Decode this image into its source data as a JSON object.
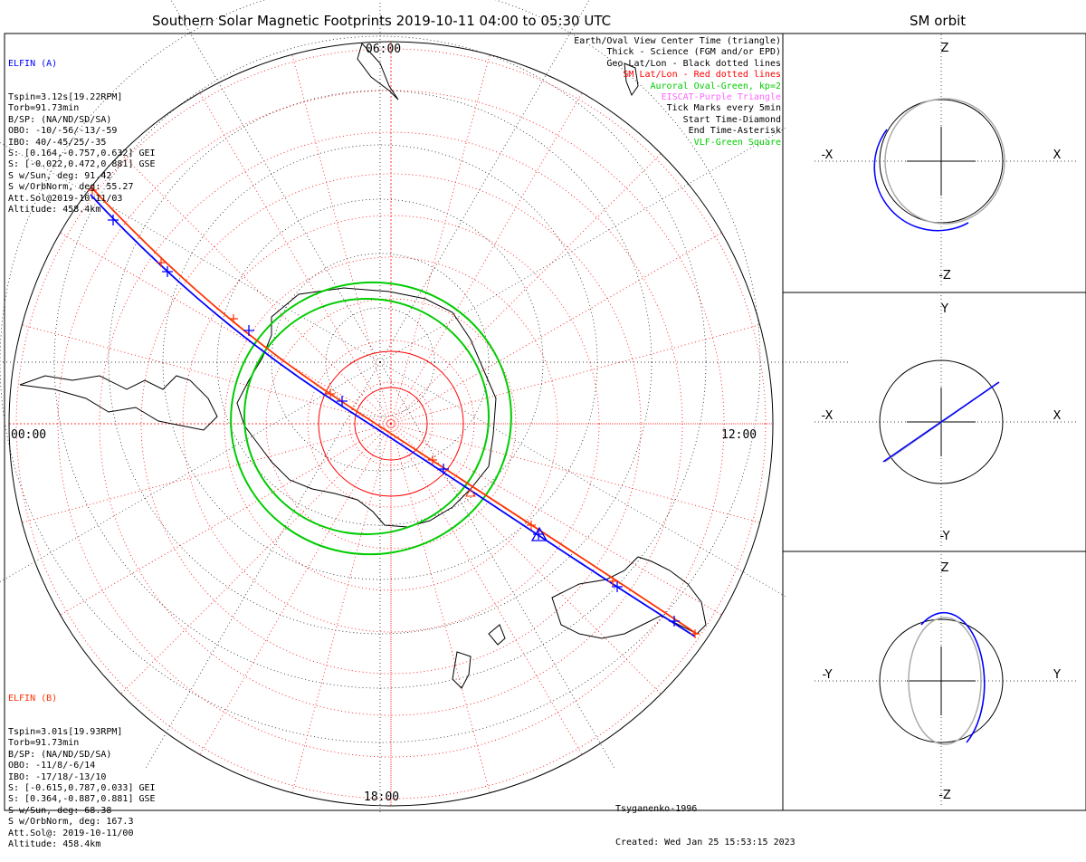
{
  "main_title": "Southern Solar Magnetic Footprints 2019-10-11 04:00 to 05:30 UTC",
  "orbit_title": "SM orbit",
  "colors": {
    "elfin_a": "#0000ff",
    "elfin_b": "#ff3300",
    "oval": "#00cc00",
    "sm_grid": "#ff0000",
    "orbit_grey": "#aaaaaa",
    "eiscat": "#ff66ff",
    "vlf": "#00cc00"
  },
  "time_labels": {
    "top": "06:00",
    "left": "00:00",
    "right": "12:00",
    "bottom": "18:00"
  },
  "elfin_a": {
    "name": "ELFIN (A)",
    "lines": [
      "Tspin=3.12s[19.22RPM]",
      "Torb=91.73min",
      "B/SP: (NA/ND/SD/SA)",
      "OBO: -10/-56/-13/-59",
      "IBO: 40/-45/25/-35",
      "S: [0.164,-0.757,0.632] GEI",
      "S: [-0.022,0.472,0.881] GSE",
      "S w/Sun, deg: 91.42",
      "S w/OrbNorm, deg: 55.27",
      "Att.Sol@2019-10-11/03",
      "Altitude: 458.4km"
    ]
  },
  "elfin_b": {
    "name": "ELFIN (B)",
    "lines": [
      "Tspin=3.01s[19.93RPM]",
      "Torb=91.73min",
      "B/SP: (NA/ND/SD/SA)",
      "OBO: -11/8/-6/14",
      "IBO: -17/18/-13/10",
      "S: [-0.615,0.787,0.033] GEI",
      "S: [0.364,-0.887,0.881] GSE",
      "S w/Sun, deg: 68.38",
      "S w/OrbNorm, deg: 167.3",
      "Att.Sol@: 2019-10-11/00",
      "Altitude: 458.4km"
    ]
  },
  "legend": [
    {
      "text": "Earth/Oval View Center Time (triangle)",
      "color": "#000000"
    },
    {
      "text": "Thick - Science (FGM and/or EPD)",
      "color": "#000000"
    },
    {
      "text": "Geo Lat/Lon - Black dotted lines",
      "color": "#000000"
    },
    {
      "text": "SM Lat/Lon - Red dotted lines",
      "color": "#ff0000"
    },
    {
      "text": "Auroral Oval-Green, kp=2",
      "color": "#00cc00"
    },
    {
      "text": "EISCAT-Purple Triangle",
      "color": "#ff66ff"
    },
    {
      "text": "Tick Marks every 5min",
      "color": "#000000"
    },
    {
      "text": "Start Time-Diamond",
      "color": "#000000"
    },
    {
      "text": "End Time-Asterisk",
      "color": "#000000"
    },
    {
      "text": "VLF-Green Square",
      "color": "#00cc00"
    }
  ],
  "footer": {
    "model": "Tsyganenko-1996",
    "created": "Created: Wed Jan 25 15:53:15 2023"
  },
  "panels": [
    {
      "top": "Z",
      "bottom": "-Z",
      "left": "-X",
      "right": "X"
    },
    {
      "top": "Y",
      "bottom": "-Y",
      "left": "-X",
      "right": "X"
    },
    {
      "top": "Z",
      "bottom": "-Z",
      "left": "-Y",
      "right": "Y"
    }
  ],
  "chart_data": {
    "type": "polar map",
    "title": "Southern Solar Magnetic Footprints 2019-10-11 04:00 to 05:30 UTC",
    "mlt_labels": [
      "00:00",
      "06:00",
      "12:00",
      "18:00"
    ],
    "series": [
      {
        "name": "ELFIN (A)",
        "color": "#0000ff"
      },
      {
        "name": "ELFIN (B)",
        "color": "#ff3300"
      }
    ]
  }
}
